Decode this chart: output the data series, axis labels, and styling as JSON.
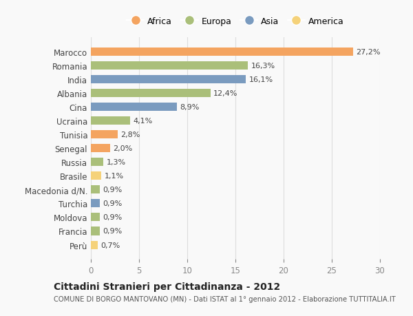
{
  "countries": [
    "Marocco",
    "Romania",
    "India",
    "Albania",
    "Cina",
    "Ucraina",
    "Tunisia",
    "Senegal",
    "Russia",
    "Brasile",
    "Macedonia d/N.",
    "Turchia",
    "Moldova",
    "Francia",
    "Perù"
  ],
  "values": [
    27.2,
    16.3,
    16.1,
    12.4,
    8.9,
    4.1,
    2.8,
    2.0,
    1.3,
    1.1,
    0.9,
    0.9,
    0.9,
    0.9,
    0.7
  ],
  "labels": [
    "27,2%",
    "16,3%",
    "16,1%",
    "12,4%",
    "8,9%",
    "4,1%",
    "2,8%",
    "2,0%",
    "1,3%",
    "1,1%",
    "0,9%",
    "0,9%",
    "0,9%",
    "0,9%",
    "0,7%"
  ],
  "continents": [
    "Africa",
    "Europa",
    "Asia",
    "Europa",
    "Asia",
    "Europa",
    "Africa",
    "Africa",
    "Europa",
    "America",
    "Europa",
    "Asia",
    "Europa",
    "Europa",
    "America"
  ],
  "continent_colors": {
    "Africa": "#F4A460",
    "Europa": "#AABF7A",
    "Asia": "#7A9BBF",
    "America": "#F5D27A"
  },
  "legend_order": [
    "Africa",
    "Europa",
    "Asia",
    "America"
  ],
  "bg_color": "#f9f9f9",
  "grid_color": "#dddddd",
  "title": "Cittadini Stranieri per Cittadinanza - 2012",
  "subtitle": "COMUNE DI BORGO MANTOVANO (MN) - Dati ISTAT al 1° gennaio 2012 - Elaborazione TUTTITALIA.IT",
  "xlim": [
    0,
    30
  ],
  "xticks": [
    0,
    5,
    10,
    15,
    20,
    25,
    30
  ]
}
